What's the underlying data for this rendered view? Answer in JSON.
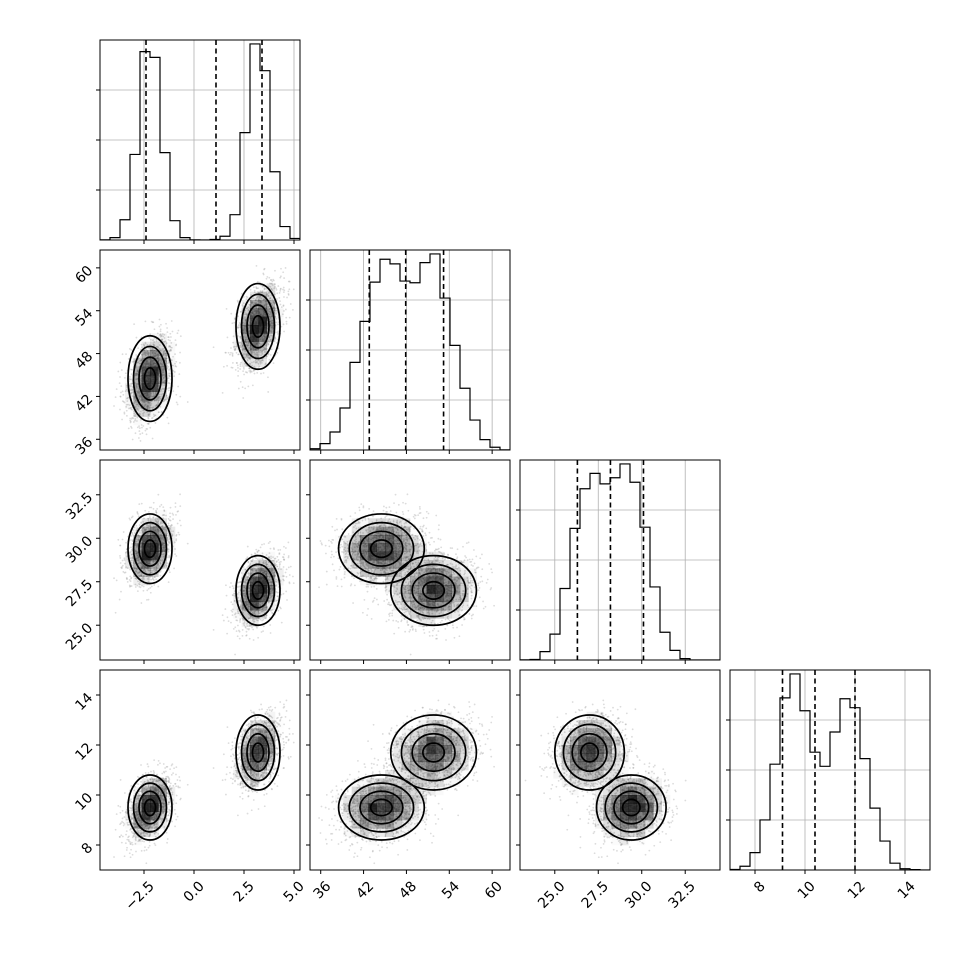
{
  "chart_data": {
    "type": "corner",
    "parameters": [
      {
        "key": "p0",
        "ticks": [
          -2.5,
          0.0,
          2.5,
          5.0
        ],
        "tick_labels": [
          "−2.5",
          "0.0",
          "2.5",
          "5.0"
        ],
        "range": [
          -4.7,
          5.3
        ],
        "modes": [
          {
            "mean": -2.2,
            "sd": 0.55,
            "weight": 0.5
          },
          {
            "mean": 3.2,
            "sd": 0.55,
            "weight": 0.5
          }
        ],
        "quantiles": [
          -2.4,
          1.1,
          3.4
        ]
      },
      {
        "key": "p1",
        "ticks": [
          36,
          42,
          48,
          54,
          60
        ],
        "tick_labels": [
          "36",
          "42",
          "48",
          "54",
          "60"
        ],
        "range": [
          34.5,
          62.5
        ],
        "modes": [
          {
            "mean": 44.5,
            "sd": 3.0,
            "weight": 0.5
          },
          {
            "mean": 51.8,
            "sd": 3.0,
            "weight": 0.5
          }
        ],
        "quantiles": [
          42.8,
          47.9,
          53.2
        ]
      },
      {
        "key": "p2",
        "ticks": [
          25.0,
          27.5,
          30.0,
          32.5
        ],
        "tick_labels": [
          "25.0",
          "27.5",
          "30.0",
          "32.5"
        ],
        "range": [
          23.0,
          34.5
        ],
        "modes": [
          {
            "mean": 29.4,
            "sd": 1.0,
            "weight": 0.5
          },
          {
            "mean": 27.0,
            "sd": 1.0,
            "weight": 0.5
          }
        ],
        "quantiles": [
          26.3,
          28.2,
          30.1
        ]
      },
      {
        "key": "p3",
        "ticks": [
          8,
          10,
          12,
          14
        ],
        "tick_labels": [
          "8",
          "10",
          "12",
          "14"
        ],
        "range": [
          7.0,
          15.0
        ],
        "modes": [
          {
            "mean": 9.5,
            "sd": 0.65,
            "weight": 0.5
          },
          {
            "mean": 11.7,
            "sd": 0.75,
            "weight": 0.5
          }
        ],
        "quantiles": [
          9.1,
          10.4,
          12.0
        ]
      }
    ],
    "histogram_bins": 20,
    "grid": true,
    "histogram_style": "step",
    "quantile_style": "dashed",
    "contour_levels": 4,
    "colors": {
      "lines": "#000000",
      "grid": "#b0b0b0",
      "density": "#000000",
      "points": "#9a9a9a"
    }
  }
}
